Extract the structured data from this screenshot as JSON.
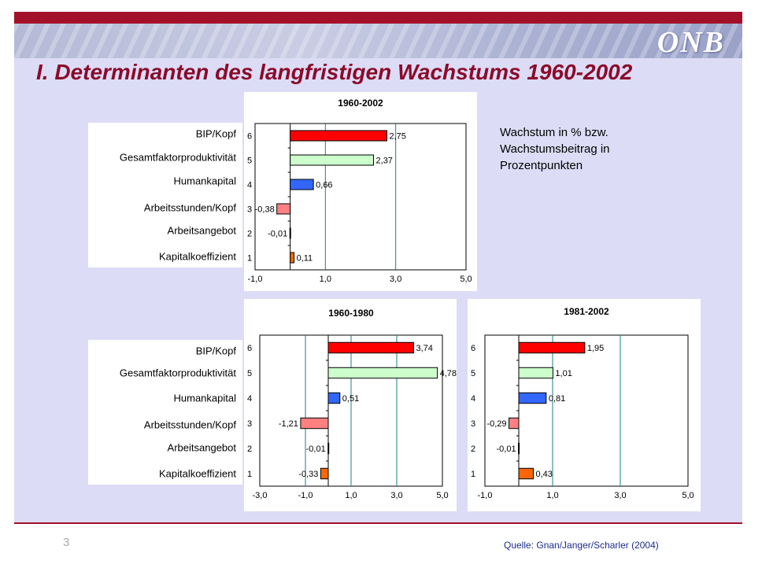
{
  "slide": {
    "title": "I. Determinanten des langfristigen Wachstums 1960-2002",
    "logo_text": "ONB",
    "note": "Wachstum  in % bzw. Wachstumsbeitrag in Prozentpunkten",
    "page_number": "3",
    "source": "Quelle: Gnan/Janger/Scharler (2004)",
    "colors": {
      "brand_red": "#a3102a",
      "title": "#8b0a2a",
      "background": "#dcdcf6"
    }
  },
  "row_labels": [
    "BIP/Kopf",
    "Gesamtfaktorproduktivität",
    "Humankapital",
    "Arbeitsstunden/Kopf",
    "Arbeitsangebot",
    "Kapitalkoeffizient"
  ],
  "chart_data": [
    {
      "type": "bar",
      "title": "1960-2002",
      "categories": [
        "6",
        "5",
        "4",
        "3",
        "2",
        "1"
      ],
      "values": [
        2.75,
        2.37,
        0.66,
        -0.38,
        -0.01,
        0.11
      ],
      "value_labels": [
        "2,75",
        "2,37",
        "0,66",
        "-0,38",
        "-0,01",
        "0,11"
      ],
      "xlim": [
        -1,
        5
      ],
      "xticks": [
        -1,
        1,
        3,
        5
      ],
      "xtick_labels": [
        "-1,0",
        "1,0",
        "3,0",
        "5,0"
      ],
      "grid": true
    },
    {
      "type": "bar",
      "title": "1960-1980",
      "categories": [
        "6",
        "5",
        "4",
        "3",
        "2",
        "1"
      ],
      "values": [
        3.74,
        4.78,
        0.51,
        -1.21,
        -0.01,
        -0.33
      ],
      "value_labels": [
        "3,74",
        "4,78",
        "0,51",
        "-1,21",
        "-0,01",
        "-0,33"
      ],
      "xlim": [
        -3,
        5
      ],
      "xticks": [
        -3,
        -1,
        1,
        3,
        5
      ],
      "xtick_labels": [
        "-3,0",
        "-1,0",
        "1,0",
        "3,0",
        "5,0"
      ],
      "grid": true
    },
    {
      "type": "bar",
      "title": "1981-2002",
      "categories": [
        "6",
        "5",
        "4",
        "3",
        "2",
        "1"
      ],
      "values": [
        1.95,
        1.01,
        0.81,
        -0.29,
        -0.01,
        0.43
      ],
      "value_labels": [
        "1,95",
        "1,01",
        "0,81",
        "-0,29",
        "-0,01",
        "0,43"
      ],
      "xlim": [
        -1,
        5
      ],
      "xticks": [
        -1,
        1,
        3,
        5
      ],
      "xtick_labels": [
        "-1,0",
        "1,0",
        "3,0",
        "5,0"
      ],
      "grid": true
    }
  ],
  "bar_colors": [
    "#ff0000",
    "#ccffcc",
    "#3366ff",
    "#ff8080",
    "#ffffff",
    "#ff6600"
  ]
}
